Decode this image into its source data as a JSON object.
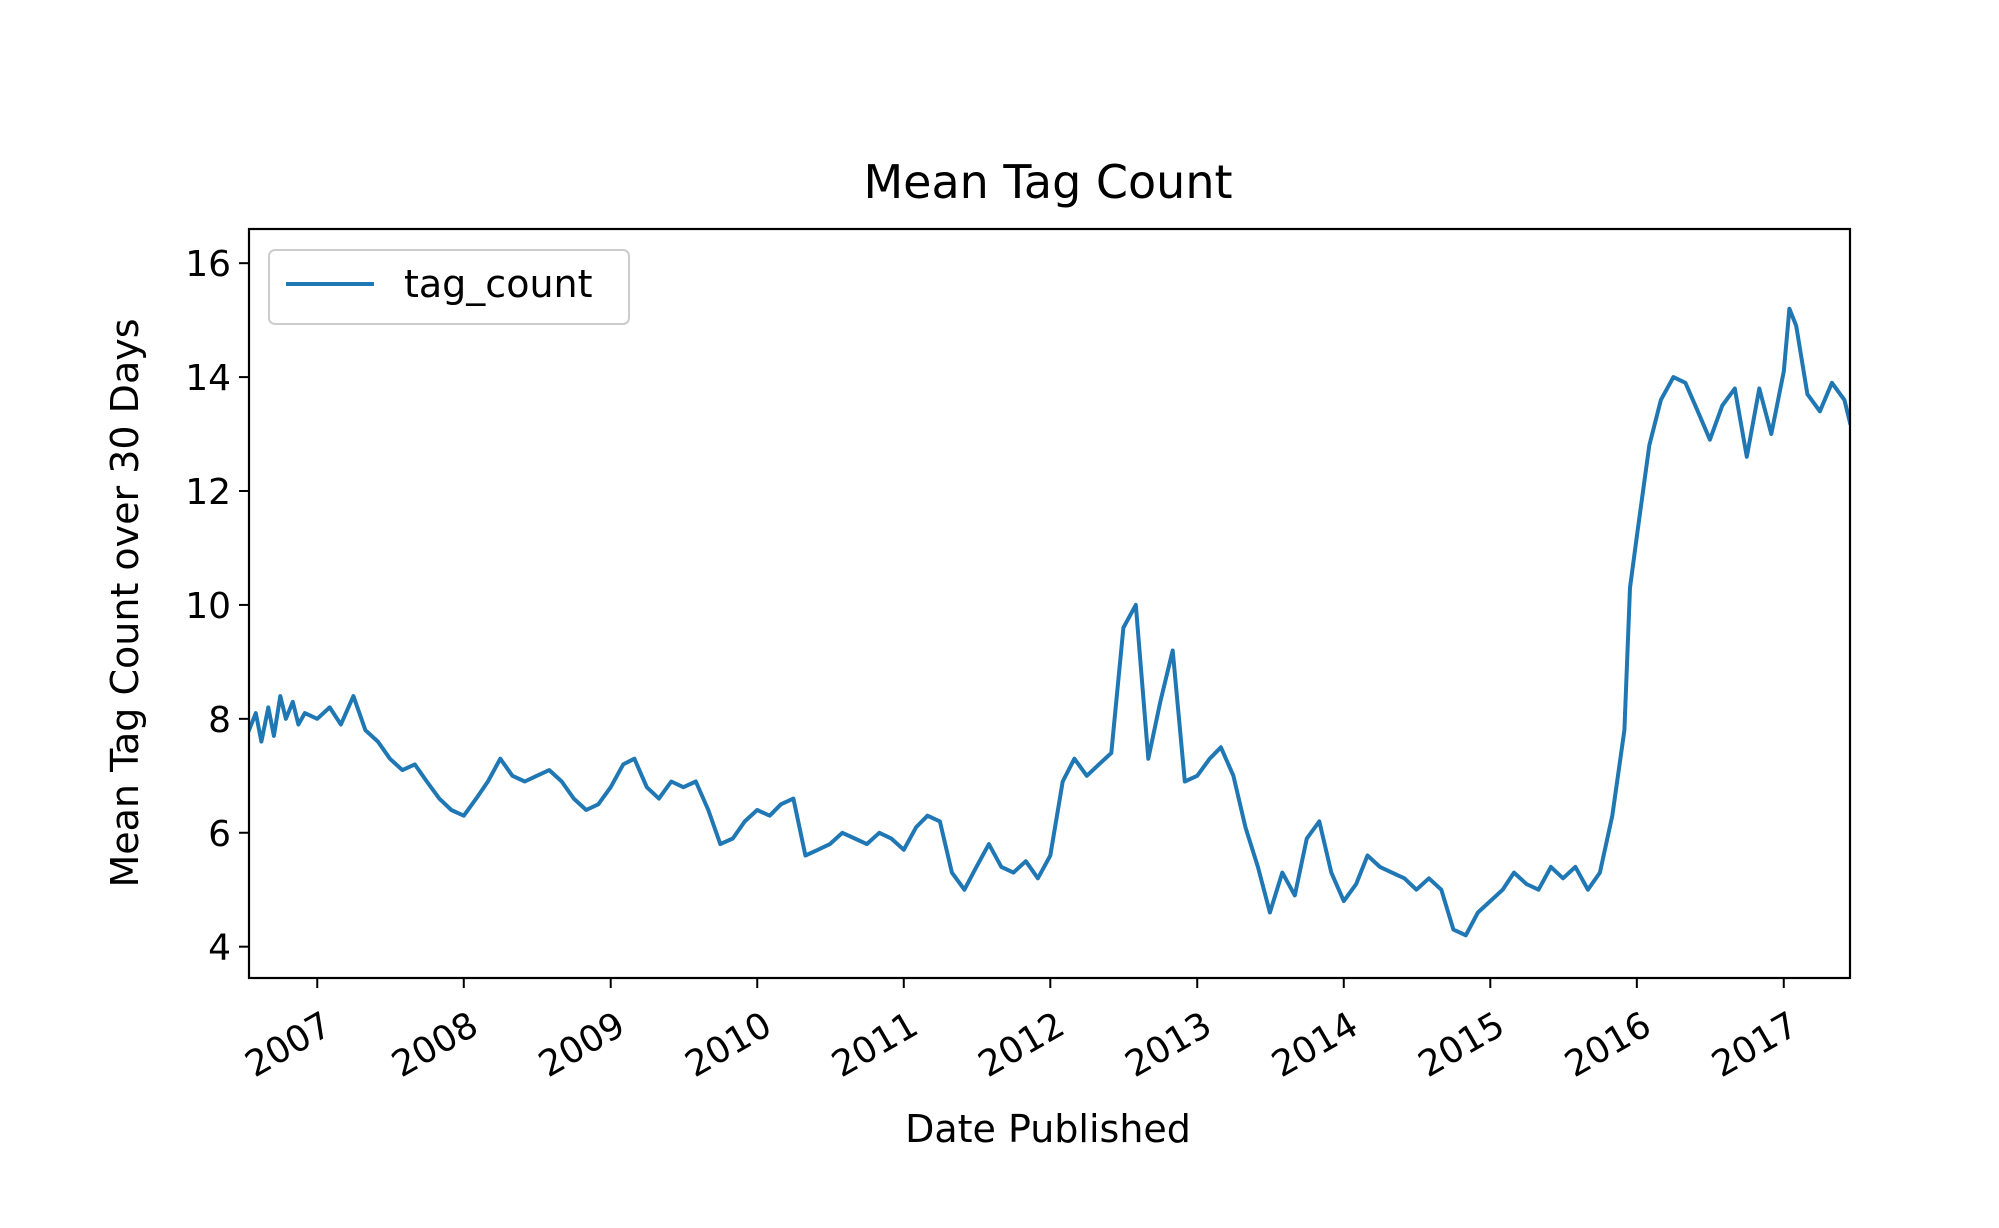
{
  "chart_data": {
    "type": "line",
    "title": "Mean Tag Count",
    "xlabel": "Date Published",
    "ylabel": "Mean Tag Count over 30 Days",
    "xlim": [
      "2006-07-15",
      "2017-06-15"
    ],
    "ylim": [
      3.45,
      16.6
    ],
    "x_ticks": [
      "2007",
      "2008",
      "2009",
      "2010",
      "2011",
      "2012",
      "2013",
      "2014",
      "2015",
      "2016",
      "2017"
    ],
    "y_ticks": [
      4,
      6,
      8,
      10,
      12,
      14,
      16
    ],
    "grid": false,
    "legend": {
      "position": "top-left",
      "entries": [
        "tag_count"
      ]
    },
    "series": [
      {
        "name": "tag_count",
        "color": "#1f77b4",
        "x": [
          "2006-07-15",
          "2006-08-01",
          "2006-08-15",
          "2006-09-01",
          "2006-09-15",
          "2006-10-01",
          "2006-10-15",
          "2006-11-01",
          "2006-11-15",
          "2006-12-01",
          "2007-01-01",
          "2007-02-01",
          "2007-03-01",
          "2007-04-01",
          "2007-05-01",
          "2007-06-01",
          "2007-07-01",
          "2007-08-01",
          "2007-09-01",
          "2007-10-01",
          "2007-11-01",
          "2007-12-01",
          "2008-01-01",
          "2008-02-01",
          "2008-03-01",
          "2008-04-01",
          "2008-05-01",
          "2008-06-01",
          "2008-07-01",
          "2008-08-01",
          "2008-09-01",
          "2008-10-01",
          "2008-11-01",
          "2008-12-01",
          "2009-01-01",
          "2009-02-01",
          "2009-03-01",
          "2009-04-01",
          "2009-05-01",
          "2009-06-01",
          "2009-07-01",
          "2009-08-01",
          "2009-09-01",
          "2009-10-01",
          "2009-11-01",
          "2009-12-01",
          "2010-01-01",
          "2010-02-01",
          "2010-03-01",
          "2010-04-01",
          "2010-05-01",
          "2010-06-01",
          "2010-07-01",
          "2010-08-01",
          "2010-09-01",
          "2010-10-01",
          "2010-11-01",
          "2010-12-01",
          "2011-01-01",
          "2011-02-01",
          "2011-03-01",
          "2011-04-01",
          "2011-05-01",
          "2011-06-01",
          "2011-07-01",
          "2011-08-01",
          "2011-09-01",
          "2011-10-01",
          "2011-11-01",
          "2011-12-01",
          "2012-01-01",
          "2012-02-01",
          "2012-03-01",
          "2012-04-01",
          "2012-05-01",
          "2012-06-01",
          "2012-07-01",
          "2012-08-01",
          "2012-09-01",
          "2012-10-01",
          "2012-11-01",
          "2012-12-01",
          "2013-01-01",
          "2013-02-01",
          "2013-03-01",
          "2013-04-01",
          "2013-05-01",
          "2013-06-01",
          "2013-07-01",
          "2013-08-01",
          "2013-09-01",
          "2013-10-01",
          "2013-11-01",
          "2013-12-01",
          "2014-01-01",
          "2014-02-01",
          "2014-03-01",
          "2014-04-01",
          "2014-05-01",
          "2014-06-01",
          "2014-07-01",
          "2014-08-01",
          "2014-09-01",
          "2014-10-01",
          "2014-11-01",
          "2014-12-01",
          "2015-01-01",
          "2015-02-01",
          "2015-03-01",
          "2015-04-01",
          "2015-05-01",
          "2015-06-01",
          "2015-07-01",
          "2015-08-01",
          "2015-09-01",
          "2015-10-01",
          "2015-11-01",
          "2015-12-01",
          "2015-12-15",
          "2016-01-01",
          "2016-02-01",
          "2016-03-01",
          "2016-04-01",
          "2016-05-01",
          "2016-06-01",
          "2016-07-01",
          "2016-08-01",
          "2016-09-01",
          "2016-10-01",
          "2016-11-01",
          "2016-12-01",
          "2017-01-01",
          "2017-01-15",
          "2017-02-01",
          "2017-03-01",
          "2017-04-01",
          "2017-05-01",
          "2017-06-01",
          "2017-06-15"
        ],
        "y": [
          7.8,
          8.1,
          7.6,
          8.2,
          7.7,
          8.4,
          8.0,
          8.3,
          7.9,
          8.1,
          8.0,
          8.2,
          7.9,
          8.4,
          7.8,
          7.6,
          7.3,
          7.1,
          7.2,
          6.9,
          6.6,
          6.4,
          6.3,
          6.6,
          6.9,
          7.3,
          7.0,
          6.9,
          7.0,
          7.1,
          6.9,
          6.6,
          6.4,
          6.5,
          6.8,
          7.2,
          7.3,
          6.8,
          6.6,
          6.9,
          6.8,
          6.9,
          6.4,
          5.8,
          5.9,
          6.2,
          6.4,
          6.3,
          6.5,
          6.6,
          5.6,
          5.7,
          5.8,
          6.0,
          5.9,
          5.8,
          6.0,
          5.9,
          5.7,
          6.1,
          6.3,
          6.2,
          5.3,
          5.0,
          5.4,
          5.8,
          5.4,
          5.3,
          5.5,
          5.2,
          5.6,
          6.9,
          7.3,
          7.0,
          7.2,
          7.4,
          9.6,
          10.0,
          7.3,
          8.3,
          9.2,
          6.9,
          7.0,
          7.3,
          7.5,
          7.0,
          6.1,
          5.4,
          4.6,
          5.3,
          4.9,
          5.9,
          6.2,
          5.3,
          4.8,
          5.1,
          5.6,
          5.4,
          5.3,
          5.2,
          5.0,
          5.2,
          5.0,
          4.3,
          4.2,
          4.6,
          4.8,
          5.0,
          5.3,
          5.1,
          5.0,
          5.4,
          5.2,
          5.4,
          5.0,
          5.3,
          6.3,
          7.8,
          10.3,
          11.2,
          12.8,
          13.6,
          14.0,
          13.9,
          13.4,
          12.9,
          13.5,
          13.8,
          12.6,
          13.8,
          13.0,
          14.1,
          15.2,
          14.9,
          13.7,
          13.4,
          13.9,
          13.6,
          13.2
        ]
      }
    ]
  }
}
